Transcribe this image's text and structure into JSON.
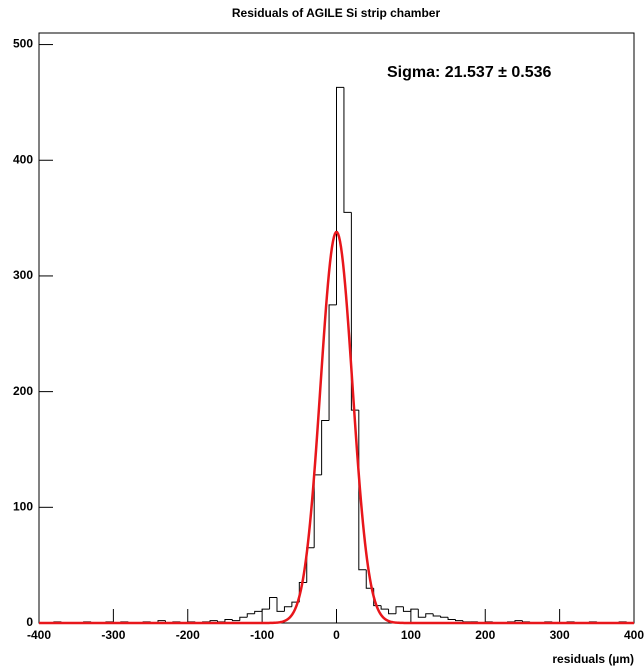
{
  "chart_data": {
    "type": "histogram",
    "title": "Residuals of AGILE Si strip chamber",
    "x_label": "residuals (µm)",
    "bins": [
      -400,
      -390,
      -380,
      -370,
      -360,
      -350,
      -340,
      -330,
      -320,
      -310,
      -300,
      -290,
      -280,
      -270,
      -260,
      -250,
      -240,
      -230,
      -220,
      -210,
      -200,
      -190,
      -180,
      -170,
      -160,
      -150,
      -140,
      -130,
      -120,
      -110,
      -100,
      -90,
      -80,
      -70,
      -60,
      -50,
      -40,
      -30,
      -20,
      -10,
      0,
      10,
      20,
      30,
      40,
      50,
      60,
      70,
      80,
      90,
      100,
      110,
      120,
      130,
      140,
      150,
      160,
      170,
      180,
      190,
      200,
      210,
      220,
      230,
      240,
      250,
      260,
      270,
      280,
      290,
      300,
      310,
      320,
      330,
      340,
      350,
      360,
      370,
      380,
      390,
      400
    ],
    "values": [
      0,
      0,
      1,
      0,
      0,
      0,
      1,
      0,
      0,
      1,
      0,
      1,
      0,
      0,
      1,
      0,
      2,
      0,
      1,
      0,
      1,
      0,
      1,
      2,
      1,
      3,
      2,
      5,
      8,
      10,
      12,
      22,
      10,
      14,
      18,
      35,
      65,
      128,
      175,
      275,
      463,
      355,
      184,
      46,
      30,
      15,
      12,
      8,
      14,
      10,
      12,
      5,
      8,
      6,
      5,
      3,
      2,
      1,
      1,
      0,
      1,
      0,
      0,
      1,
      2,
      1,
      0,
      0,
      1,
      0,
      0,
      1,
      0,
      0,
      1,
      0,
      0,
      0,
      1,
      0
    ],
    "color": "#000000",
    "fit": {
      "label": "Sigma: 21.537 ±  0.536",
      "mean": 0,
      "sigma": 21.537,
      "peak": 338,
      "color": "#e8161b"
    },
    "xlim": [
      -400,
      400
    ],
    "ylim": [
      0,
      510
    ],
    "xticks": [
      -400,
      -300,
      -200,
      -100,
      0,
      100,
      200,
      300,
      400
    ],
    "yticks": [
      0,
      100,
      200,
      300,
      400,
      500
    ]
  }
}
